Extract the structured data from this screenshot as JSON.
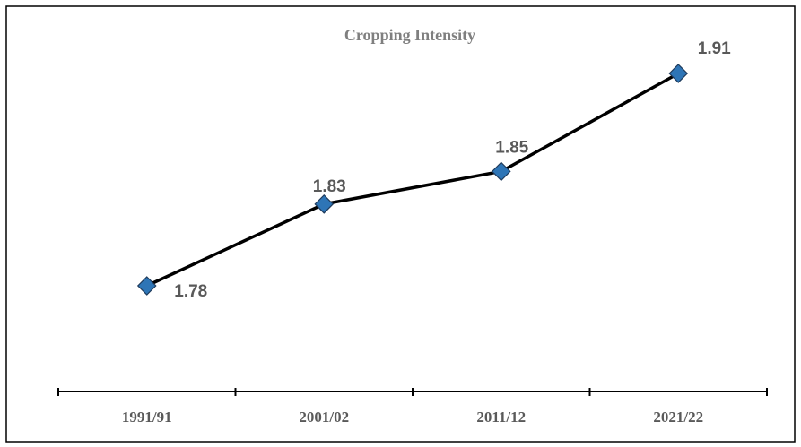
{
  "chart_data": {
    "type": "line",
    "title": "Cropping Intensity",
    "categories": [
      "1991/91",
      "2001/02",
      "2011/12",
      "2021/22"
    ],
    "values": [
      1.78,
      1.83,
      1.85,
      1.91
    ],
    "color": "#2e75b6"
  }
}
